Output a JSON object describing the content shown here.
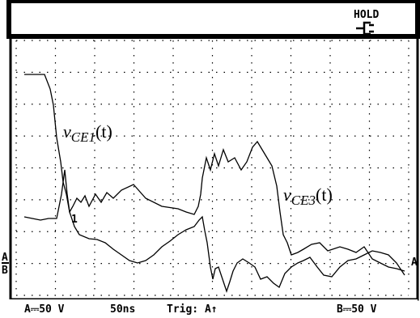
{
  "header": {
    "status": "HOLD"
  },
  "labels": {
    "trace1": {
      "symbol": "v",
      "subscript": "CE1",
      "suffix": "(t)"
    },
    "trace2": {
      "symbol": "v",
      "subscript": "CE3",
      "suffix": "(t)"
    }
  },
  "markers": {
    "left_a": "A",
    "left_b": "B",
    "trigger_point": "1",
    "right_a": "A"
  },
  "footer": {
    "channel_a": "A⎓50 V",
    "timebase": "50ns",
    "trigger": "Trig: A↑",
    "channel_b": "B⎓50 V"
  }
}
